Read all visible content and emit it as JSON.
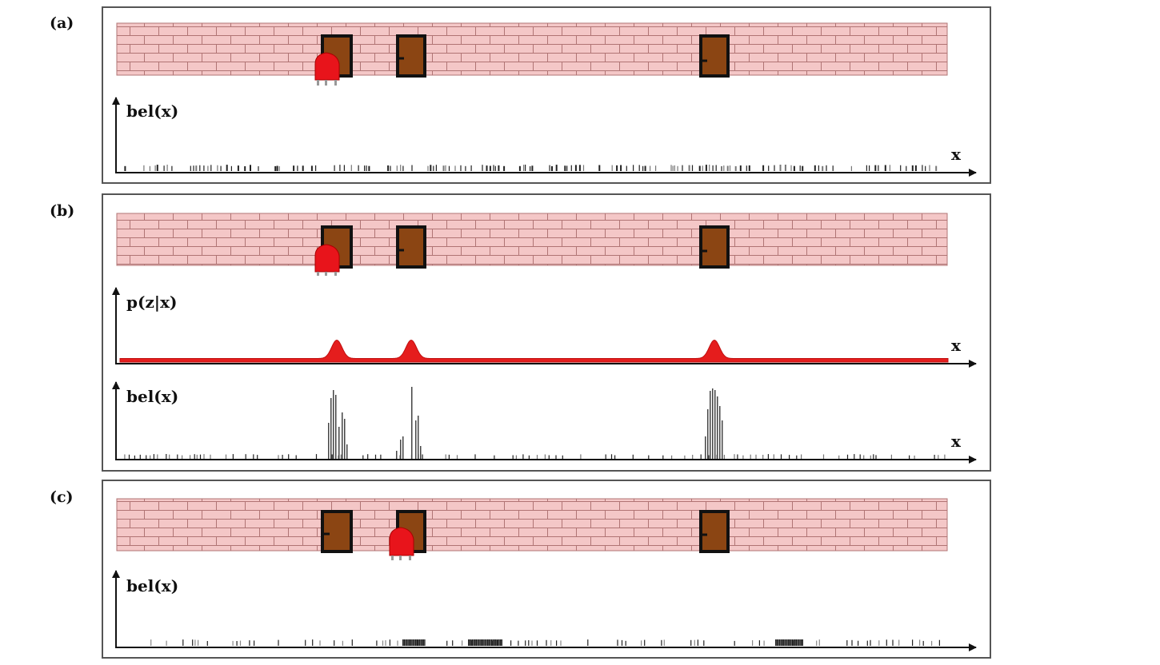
{
  "panels": [
    {
      "id": "a",
      "label": "(a)",
      "robot_at": "door-1",
      "plots": [
        {
          "kind": "belief",
          "ylabel": "bel(x)",
          "xlabel": "x",
          "distribution": "uniform"
        }
      ]
    },
    {
      "id": "b",
      "label": "(b)",
      "robot_at": "door-1",
      "plots": [
        {
          "kind": "measurement",
          "ylabel": "p(z|x)",
          "xlabel": "x",
          "peaks_at": [
            "door-1",
            "door-2",
            "door-3"
          ]
        },
        {
          "kind": "belief",
          "ylabel": "bel(x)",
          "xlabel": "x",
          "distribution": "peaked",
          "peaks_at": [
            "door-1",
            "door-2",
            "door-3"
          ]
        }
      ]
    },
    {
      "id": "c",
      "label": "(c)",
      "robot_at": "door-2",
      "plots": [
        {
          "kind": "belief",
          "ylabel": "bel(x)",
          "xlabel": "x",
          "distribution": "clustered"
        }
      ]
    }
  ],
  "doors": [
    "door-1",
    "door-2",
    "door-3"
  ],
  "colors": {
    "wall": "#f4c7c7",
    "mortar": "#b07474",
    "door": "#8b4513",
    "door_frame": "#111111",
    "robot": "#e8141b",
    "likelihood": "#e51d1d",
    "particles": "#222222",
    "panel_border": "#555555"
  }
}
